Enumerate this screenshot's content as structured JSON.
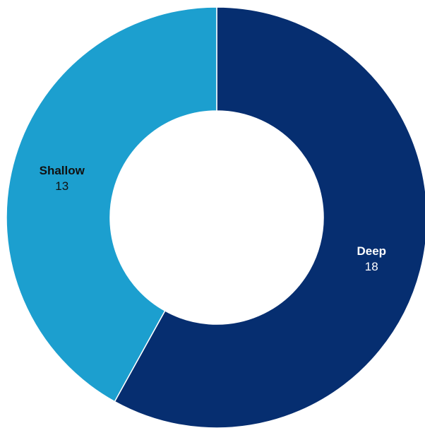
{
  "chart_data": {
    "type": "pie",
    "donut": true,
    "slices": [
      {
        "label": "Deep",
        "value": 18,
        "color": "#062e70",
        "text_color": "#ffffff"
      },
      {
        "label": "Shallow",
        "value": 13,
        "color": "#1c9fcf",
        "text_color": "#111111"
      }
    ],
    "slice_border_color": "#ffffff",
    "start_angle_degrees": 0,
    "direction": "clockwise"
  }
}
